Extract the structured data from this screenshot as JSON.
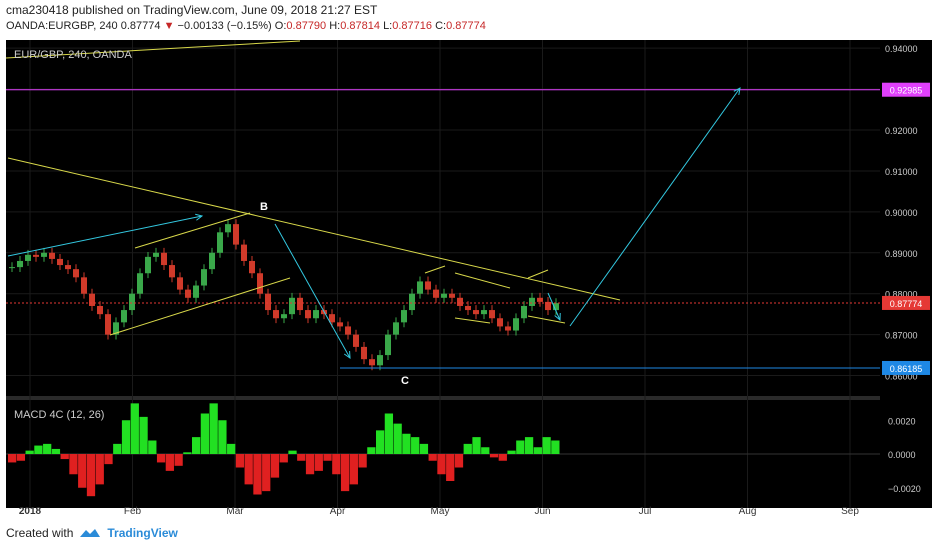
{
  "header": {
    "line1": "cma230418 published on TradingView.com, June 09, 2018 21:27 EST",
    "symbol": "OANDA:EURGBP, 240",
    "last": "0.87774",
    "change": "−0.00133 (−0.15%)",
    "o_label": "O:",
    "o": "0.87790",
    "h_label": "H:",
    "h": "0.87814",
    "l_label": "L:",
    "l": "0.87716",
    "c_label": "C:",
    "c": "0.87774"
  },
  "footer": {
    "created_with": "Created with",
    "brand": "TradingView"
  },
  "chart_data": {
    "type": "line",
    "title": "EUR/GBP, 240, OANDA",
    "series_kind": "candlestick",
    "x_ticks": [
      "2018",
      "Feb",
      "Mar",
      "Apr",
      "May",
      "Jun",
      "Jul",
      "Aug",
      "Sep"
    ],
    "y_ticks": [
      "0.94000",
      "0.93000",
      "0.92000",
      "0.91000",
      "0.90000",
      "0.89000",
      "0.88000",
      "0.87000",
      "0.86000"
    ],
    "ylim": [
      0.855,
      0.942
    ],
    "close_path": [
      0.8865,
      0.888,
      0.8895,
      0.889,
      0.89,
      0.8885,
      0.887,
      0.886,
      0.884,
      0.88,
      0.877,
      0.875,
      0.87,
      0.873,
      0.876,
      0.88,
      0.885,
      0.889,
      0.89,
      0.887,
      0.884,
      0.881,
      0.879,
      0.882,
      0.886,
      0.89,
      0.895,
      0.897,
      0.892,
      0.888,
      0.885,
      0.88,
      0.876,
      0.874,
      0.875,
      0.879,
      0.876,
      0.874,
      0.876,
      0.875,
      0.873,
      0.872,
      0.87,
      0.867,
      0.864,
      0.8625,
      0.865,
      0.87,
      0.873,
      0.876,
      0.88,
      0.883,
      0.881,
      0.879,
      0.88,
      0.879,
      0.877,
      0.876,
      0.875,
      0.876,
      0.874,
      0.872,
      0.871,
      0.874,
      0.877,
      0.879,
      0.878,
      0.876,
      0.8777
    ],
    "price_labels": [
      {
        "value": 0.92985,
        "text": "0.92985",
        "color": "#e040fb"
      },
      {
        "value": 0.87774,
        "text": "0.87774",
        "color": "#e53935"
      },
      {
        "value": 0.86185,
        "text": "0.86185",
        "color": "#1e88e5"
      }
    ],
    "annotations": [
      {
        "text": "B"
      },
      {
        "text": "C"
      }
    ],
    "macd": {
      "title": "MACD 4C (12, 26)",
      "y_ticks": [
        "0.0020",
        "0.0000",
        "−0.0020"
      ],
      "ylim": [
        -0.0032,
        0.0032
      ],
      "values": [
        -0.0005,
        -0.0004,
        0.0002,
        0.0005,
        0.0006,
        0.0003,
        -0.0003,
        -0.0012,
        -0.002,
        -0.0025,
        -0.0018,
        -0.0006,
        0.0006,
        0.002,
        0.003,
        0.0022,
        0.0008,
        -0.0005,
        -0.001,
        -0.0007,
        0.0001,
        0.001,
        0.0024,
        0.003,
        0.002,
        0.0006,
        -0.0008,
        -0.0018,
        -0.0024,
        -0.0022,
        -0.0014,
        -0.0005,
        0.0002,
        -0.0004,
        -0.0012,
        -0.001,
        -0.0004,
        -0.0012,
        -0.0022,
        -0.0018,
        -0.0008,
        0.0004,
        0.0014,
        0.0024,
        0.0018,
        0.0012,
        0.001,
        0.0006,
        -0.0004,
        -0.0012,
        -0.0016,
        -0.0008,
        0.0006,
        0.001,
        0.0004,
        -0.0002,
        -0.0004,
        0.0002,
        0.0008,
        0.001,
        0.0004,
        0.001,
        0.0008
      ]
    },
    "colors": {
      "background": "#000000",
      "grid": "#1a1a1a",
      "candle_up": "#3aa84a",
      "candle_down": "#d03a2a",
      "trend": "#d8d84a",
      "arrow": "#33c8e0",
      "hist_up": "#22e022",
      "hist_down": "#e02020",
      "axis_text": "#cccccc"
    }
  }
}
